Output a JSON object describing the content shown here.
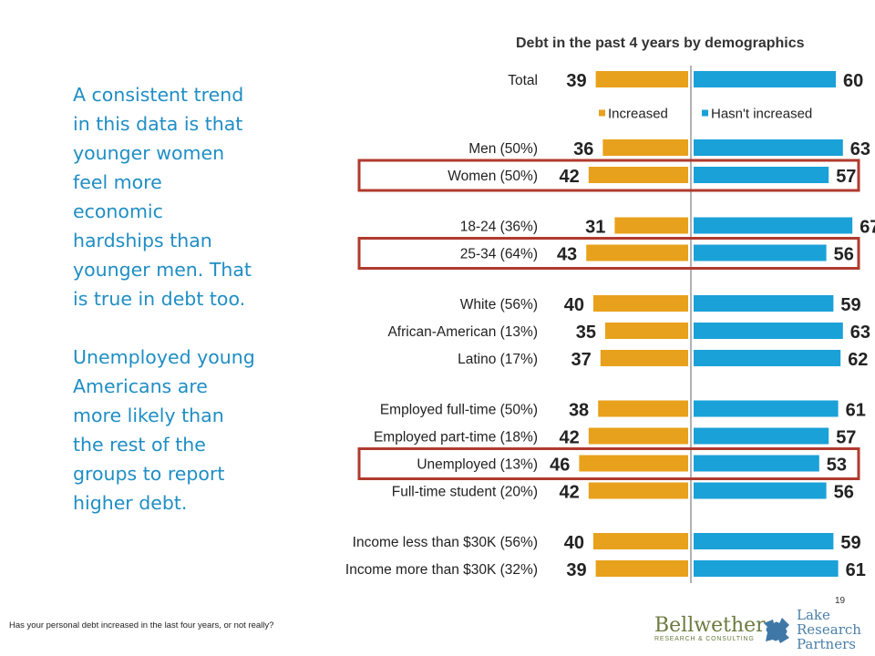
{
  "slide": {
    "commentary": [
      "A consistent trend in this data is that younger women feel more economic hardships than younger men. That is true in debt too.",
      "Unemployed young Americans are more likely than the rest of the groups to report higher debt."
    ],
    "footnote": "Has your personal debt increased in the last four years, or not really?",
    "page_number": "19",
    "logos": {
      "bellwether_name": "Bellwether",
      "bellwether_tagline": "RESEARCH & CONSULTING",
      "lake_line1": "Lake",
      "lake_line2": "Research",
      "lake_line3": "Partners"
    }
  },
  "chart_data": {
    "type": "bar",
    "orientation": "diverging-horizontal",
    "title": "Debt in the past 4 years by demographics",
    "series": [
      {
        "name": "Increased",
        "color": "#e8a11c",
        "direction": "left"
      },
      {
        "name": "Hasn't increased",
        "color": "#1aa1d8",
        "direction": "right"
      }
    ],
    "legend_position": "below first row",
    "highlight_color": "#b03a2e",
    "rows": [
      {
        "label": "Total",
        "increased": 39,
        "not_increased": 60,
        "gap_after": 1.5
      },
      {
        "label": "Men (50%)",
        "increased": 36,
        "not_increased": 63
      },
      {
        "label": "Women (50%)",
        "increased": 42,
        "not_increased": 57,
        "highlight": true,
        "gap_after": 0.85
      },
      {
        "label": "18-24 (36%)",
        "increased": 31,
        "not_increased": 67
      },
      {
        "label": "25-34 (64%)",
        "increased": 43,
        "not_increased": 56,
        "highlight": true,
        "gap_after": 0.85
      },
      {
        "label": "White (56%)",
        "increased": 40,
        "not_increased": 59
      },
      {
        "label": "African-American (13%)",
        "increased": 35,
        "not_increased": 63
      },
      {
        "label": "Latino (17%)",
        "increased": 37,
        "not_increased": 62,
        "gap_after": 0.85
      },
      {
        "label": "Employed full-time (50%)",
        "increased": 38,
        "not_increased": 61
      },
      {
        "label": "Employed part-time (18%)",
        "increased": 42,
        "not_increased": 57
      },
      {
        "label": "Unemployed (13%)",
        "increased": 46,
        "not_increased": 53,
        "highlight": true
      },
      {
        "label": "Full-time student (20%)",
        "increased": 42,
        "not_increased": 56,
        "gap_after": 0.85
      },
      {
        "label": "Income less than $30K (56%)",
        "increased": 40,
        "not_increased": 59
      },
      {
        "label": "Income more than $30K (32%)",
        "increased": 39,
        "not_increased": 61
      }
    ]
  }
}
